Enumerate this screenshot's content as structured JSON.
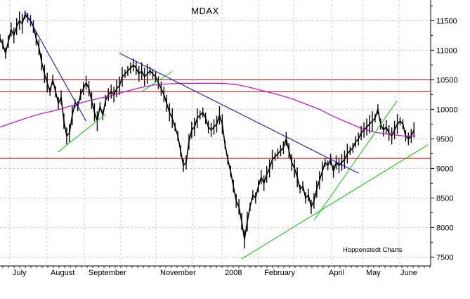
{
  "chart_data": {
    "type": "line",
    "title": "MDAX",
    "credit": "Hoppenstedt Charts",
    "ylim": [
      7350,
      11850
    ],
    "y_ticks": [
      7500,
      8000,
      8500,
      9000,
      9500,
      10000,
      10500,
      11000,
      11500
    ],
    "x_labels": [
      "July",
      "August",
      "September",
      "November",
      "2008",
      "February",
      "April",
      "May",
      "June"
    ],
    "grid": true,
    "series": [
      {
        "color": "#000000",
        "points": [
          [
            0,
            11200
          ],
          [
            4,
            11100
          ],
          [
            8,
            10950
          ],
          [
            12,
            11150
          ],
          [
            16,
            11350
          ],
          [
            20,
            11250
          ],
          [
            24,
            11400
          ],
          [
            28,
            11500
          ],
          [
            32,
            11450
          ],
          [
            36,
            11600
          ],
          [
            40,
            11550
          ],
          [
            44,
            11500
          ],
          [
            48,
            11400
          ],
          [
            52,
            11200
          ],
          [
            56,
            11050
          ],
          [
            60,
            10800
          ],
          [
            64,
            10600
          ],
          [
            68,
            10450
          ],
          [
            72,
            10300
          ],
          [
            76,
            10500
          ],
          [
            80,
            10300
          ],
          [
            84,
            10100
          ],
          [
            88,
            10200
          ],
          [
            92,
            9800
          ],
          [
            96,
            9550
          ],
          [
            100,
            9600
          ],
          [
            104,
            9900
          ],
          [
            108,
            10100
          ],
          [
            112,
            10050
          ],
          [
            116,
            10250
          ],
          [
            120,
            10350
          ],
          [
            124,
            10450
          ],
          [
            128,
            10350
          ],
          [
            132,
            10150
          ],
          [
            136,
            9950
          ],
          [
            140,
            9800
          ],
          [
            144,
            10050
          ],
          [
            148,
            9900
          ],
          [
            152,
            10150
          ],
          [
            156,
            10250
          ],
          [
            160,
            10300
          ],
          [
            164,
            10250
          ],
          [
            168,
            10350
          ],
          [
            172,
            10400
          ],
          [
            176,
            10550
          ],
          [
            180,
            10600
          ],
          [
            184,
            10650
          ],
          [
            188,
            10700
          ],
          [
            192,
            10750
          ],
          [
            196,
            10700
          ],
          [
            200,
            10600
          ],
          [
            204,
            10650
          ],
          [
            208,
            10550
          ],
          [
            212,
            10600
          ],
          [
            216,
            10650
          ],
          [
            220,
            10600
          ],
          [
            224,
            10550
          ],
          [
            228,
            10450
          ],
          [
            232,
            10350
          ],
          [
            236,
            10250
          ],
          [
            240,
            10100
          ],
          [
            244,
            9950
          ],
          [
            248,
            9850
          ],
          [
            252,
            9700
          ],
          [
            256,
            9550
          ],
          [
            260,
            9300
          ],
          [
            264,
            9050
          ],
          [
            268,
            9100
          ],
          [
            272,
            9450
          ],
          [
            276,
            9650
          ],
          [
            280,
            9700
          ],
          [
            284,
            9850
          ],
          [
            288,
            9900
          ],
          [
            292,
            9950
          ],
          [
            296,
            9850
          ],
          [
            300,
            9700
          ],
          [
            304,
            9650
          ],
          [
            308,
            9700
          ],
          [
            312,
            9750
          ],
          [
            316,
            9900
          ],
          [
            320,
            9750
          ],
          [
            324,
            9400
          ],
          [
            328,
            9150
          ],
          [
            332,
            8950
          ],
          [
            336,
            8700
          ],
          [
            340,
            8450
          ],
          [
            344,
            8350
          ],
          [
            348,
            8100
          ],
          [
            352,
            7800
          ],
          [
            356,
            8100
          ],
          [
            360,
            8350
          ],
          [
            364,
            8550
          ],
          [
            368,
            8500
          ],
          [
            372,
            8700
          ],
          [
            376,
            8850
          ],
          [
            380,
            8750
          ],
          [
            384,
            8900
          ],
          [
            388,
            9000
          ],
          [
            392,
            9150
          ],
          [
            396,
            9200
          ],
          [
            400,
            9250
          ],
          [
            404,
            9300
          ],
          [
            408,
            9350
          ],
          [
            412,
            9500
          ],
          [
            416,
            9300
          ],
          [
            420,
            9100
          ],
          [
            424,
            9000
          ],
          [
            428,
            8850
          ],
          [
            432,
            8650
          ],
          [
            436,
            8700
          ],
          [
            440,
            8500
          ],
          [
            444,
            8550
          ],
          [
            448,
            8350
          ],
          [
            452,
            8450
          ],
          [
            456,
            8650
          ],
          [
            460,
            8800
          ],
          [
            464,
            8950
          ],
          [
            468,
            9100
          ],
          [
            472,
            9050
          ],
          [
            476,
            9150
          ],
          [
            480,
            8950
          ],
          [
            484,
            9100
          ],
          [
            488,
            9050
          ],
          [
            492,
            9100
          ],
          [
            496,
            9150
          ],
          [
            500,
            9250
          ],
          [
            504,
            9300
          ],
          [
            508,
            9350
          ],
          [
            512,
            9450
          ],
          [
            516,
            9500
          ],
          [
            520,
            9600
          ],
          [
            524,
            9650
          ],
          [
            528,
            9700
          ],
          [
            532,
            9750
          ],
          [
            536,
            9800
          ],
          [
            540,
            9850
          ],
          [
            544,
            10000
          ],
          [
            548,
            9750
          ],
          [
            552,
            9650
          ],
          [
            556,
            9700
          ],
          [
            560,
            9600
          ],
          [
            564,
            9550
          ],
          [
            568,
            9650
          ],
          [
            572,
            9750
          ],
          [
            576,
            9800
          ],
          [
            580,
            9750
          ],
          [
            584,
            9550
          ],
          [
            588,
            9500
          ],
          [
            592,
            9550
          ],
          [
            596,
            9650
          ]
        ]
      },
      {
        "name": "",
        "color": "#cc00cc",
        "points": [
          [
            0,
            9700
          ],
          [
            20,
            9780
          ],
          [
            40,
            9860
          ],
          [
            60,
            9930
          ],
          [
            80,
            9980
          ],
          [
            100,
            10050
          ],
          [
            120,
            10120
          ],
          [
            140,
            10180
          ],
          [
            160,
            10230
          ],
          [
            180,
            10300
          ],
          [
            200,
            10360
          ],
          [
            220,
            10410
          ],
          [
            240,
            10430
          ],
          [
            260,
            10440
          ],
          [
            280,
            10440
          ],
          [
            300,
            10440
          ],
          [
            320,
            10440
          ],
          [
            340,
            10420
          ],
          [
            360,
            10370
          ],
          [
            380,
            10310
          ],
          [
            400,
            10250
          ],
          [
            420,
            10180
          ],
          [
            440,
            10090
          ],
          [
            460,
            10000
          ],
          [
            480,
            9880
          ],
          [
            500,
            9780
          ],
          [
            520,
            9680
          ],
          [
            540,
            9610
          ],
          [
            560,
            9580
          ],
          [
            580,
            9550
          ],
          [
            596,
            9550
          ]
        ]
      }
    ],
    "horizontal_lines": [
      {
        "value": 10500,
        "color": "#cc0000"
      },
      {
        "value": 10300,
        "color": "#cc0000"
      },
      {
        "value": 9170,
        "color": "#cc0000"
      }
    ],
    "trend_lines": [
      {
        "color": "#0000cc",
        "from": [
          36,
          11650
        ],
        "to": [
          124,
          9800
        ]
      },
      {
        "color": "#0000cc",
        "from": [
          172,
          10950
        ],
        "to": [
          516,
          8920
        ]
      },
      {
        "color": "#00cc00",
        "from": [
          84,
          9280
        ],
        "to": [
          152,
          9920
        ]
      },
      {
        "color": "#00cc00",
        "from": [
          204,
          10300
        ],
        "to": [
          248,
          10640
        ]
      },
      {
        "color": "#00cc00",
        "from": [
          452,
          8120
        ],
        "to": [
          572,
          10150
        ]
      },
      {
        "color": "#00cc00",
        "from": [
          348,
          7470
        ],
        "to": [
          616,
          9400
        ]
      }
    ]
  }
}
